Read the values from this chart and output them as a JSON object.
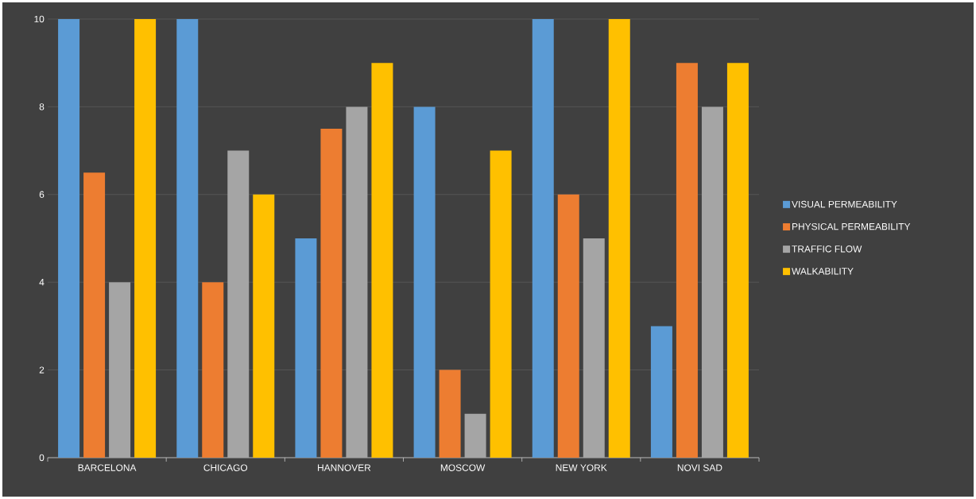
{
  "chart_data": {
    "type": "bar",
    "categories": [
      "BARCELONA",
      "CHICAGO",
      "HANNOVER",
      "MOSCOW",
      "NEW YORK",
      "NOVI SAD"
    ],
    "series": [
      {
        "name": "VISUAL PERMEABILITY",
        "color": "#5b9bd5",
        "values": [
          10,
          10,
          5,
          8,
          10,
          3
        ]
      },
      {
        "name": "PHYSICAL PERMEABILITY",
        "color": "#ed7d31",
        "values": [
          6.5,
          4,
          7.5,
          2,
          6,
          9
        ]
      },
      {
        "name": "TRAFFIC FLOW",
        "color": "#a5a5a5",
        "values": [
          4,
          7,
          8,
          1,
          5,
          8
        ]
      },
      {
        "name": "WALKABILITY",
        "color": "#ffc000",
        "values": [
          10,
          6,
          9,
          7,
          10,
          9
        ]
      }
    ],
    "ylim": [
      0,
      10
    ],
    "yticks": [
      0,
      2,
      4,
      6,
      8,
      10
    ],
    "grid": "y",
    "legend": "right"
  }
}
